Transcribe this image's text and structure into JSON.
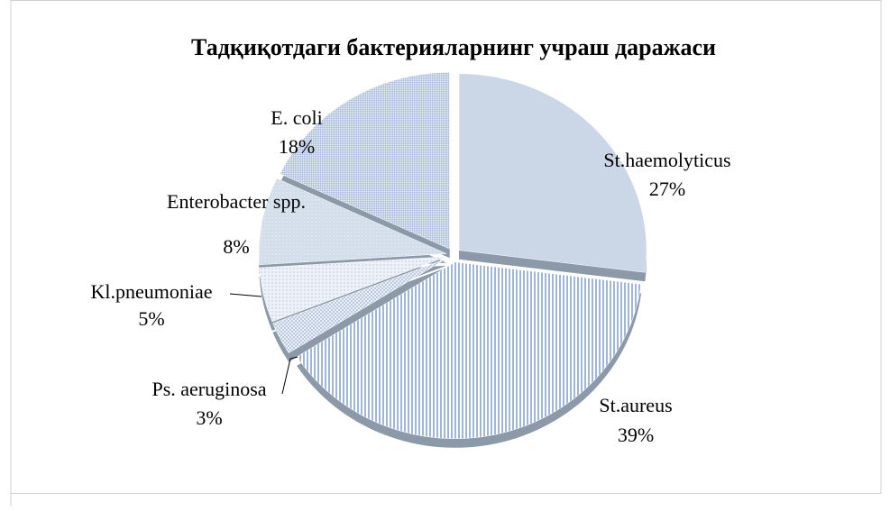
{
  "chart_data": {
    "type": "pie",
    "title": "Тадқиқотдаги бактерияларнинг учраш даражаси",
    "categories": [
      "St.haemolyticus",
      "St.aureus",
      "Ps. aeruginosa",
      "Kl.pneumoniae",
      "Enterobacter spp.",
      "E. coli"
    ],
    "values": [
      27,
      39,
      3,
      5,
      8,
      18
    ],
    "value_labels": [
      "27%",
      "39%",
      "3%",
      "5%",
      "8%",
      "18%"
    ],
    "colors": [
      "#cbd7e7",
      "#9fb6d6",
      "#b5c7de",
      "#c4d3e5",
      "#d3deeb",
      "#a9bdd9"
    ]
  }
}
